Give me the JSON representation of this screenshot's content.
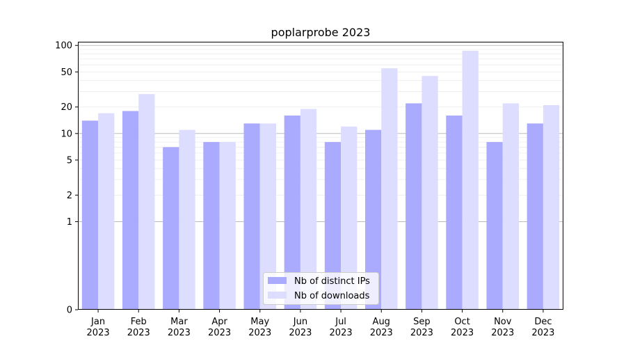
{
  "chart_data": {
    "type": "bar",
    "title": "poplarprobe 2023",
    "xlabel": "",
    "ylabel": "",
    "categories": [
      [
        "Jan",
        "2023"
      ],
      [
        "Feb",
        "2023"
      ],
      [
        "Mar",
        "2023"
      ],
      [
        "Apr",
        "2023"
      ],
      [
        "May",
        "2023"
      ],
      [
        "Jun",
        "2023"
      ],
      [
        "Jul",
        "2023"
      ],
      [
        "Aug",
        "2023"
      ],
      [
        "Sep",
        "2023"
      ],
      [
        "Oct",
        "2023"
      ],
      [
        "Nov",
        "2023"
      ],
      [
        "Dec",
        "2023"
      ]
    ],
    "series": [
      {
        "name": "Nb of distinct IPs",
        "color": "#aaaaff",
        "values": [
          14,
          18,
          7,
          8,
          13,
          16,
          8,
          11,
          22,
          16,
          8,
          13
        ]
      },
      {
        "name": "Nb of downloads",
        "color": "#ddddff",
        "values": [
          17,
          28,
          11,
          8,
          13,
          19,
          12,
          55,
          45,
          87,
          22,
          21
        ]
      }
    ],
    "y_scale": "symlog",
    "ylim": [
      0,
      110
    ],
    "y_ticks": [
      "0",
      "1",
      "2",
      "5",
      "10",
      "20",
      "50",
      "100"
    ],
    "grid": true,
    "legend_position": "lower-center"
  }
}
